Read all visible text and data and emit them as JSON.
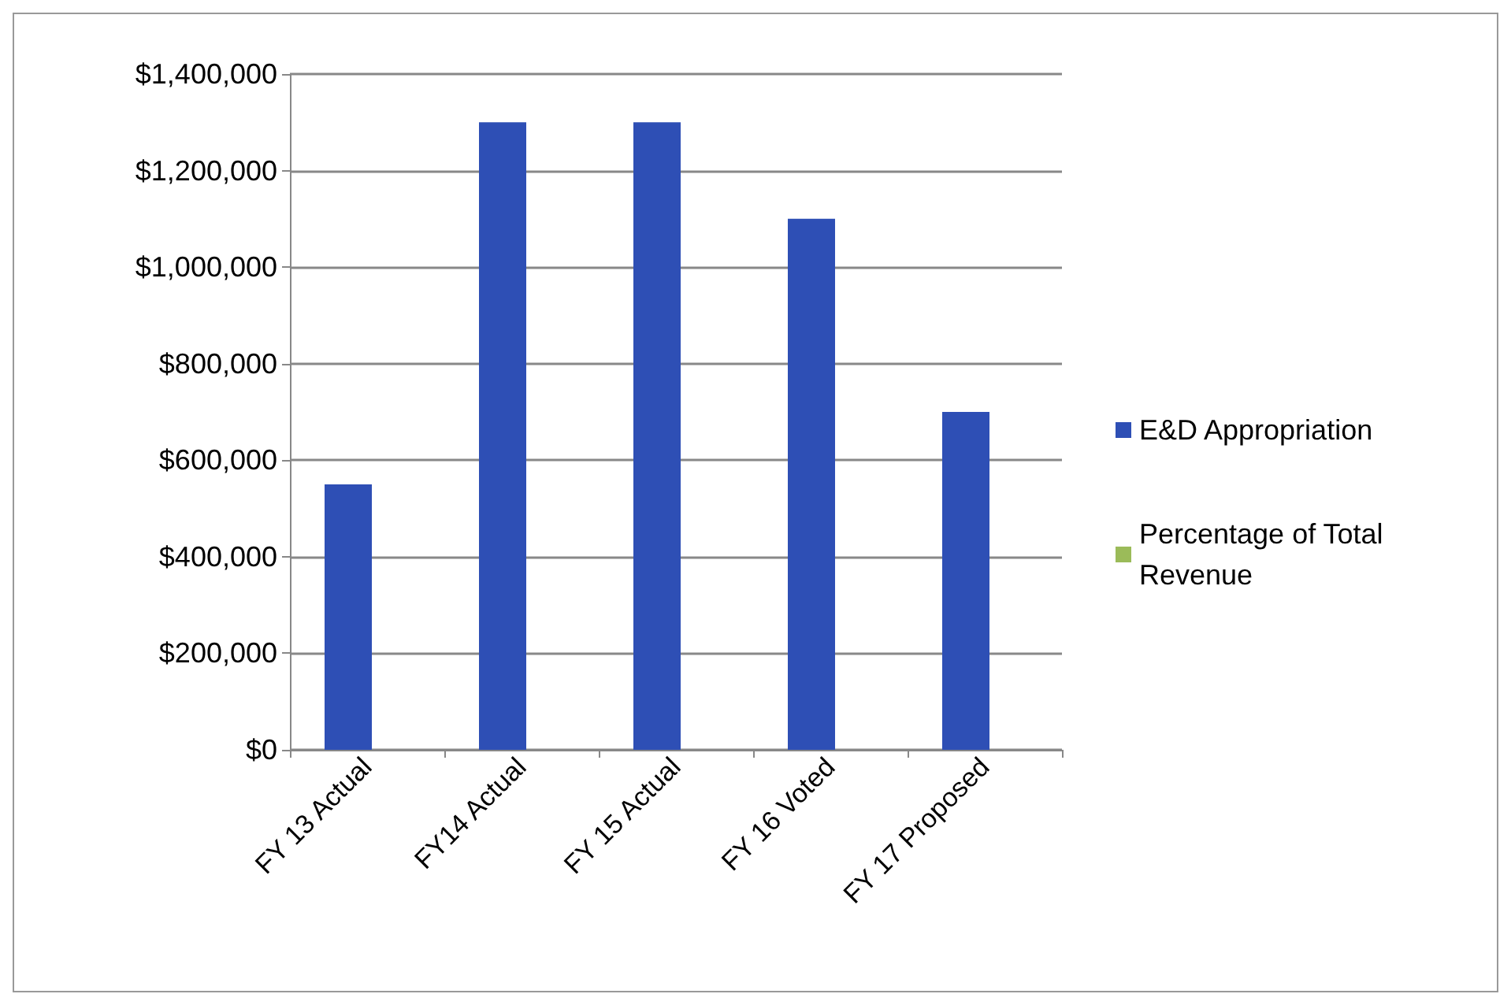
{
  "chart_data": {
    "type": "bar",
    "categories": [
      "FY 13 Actual",
      "FY14 Actual",
      "FY 15 Actual",
      "FY 16 Voted",
      "FY 17 Proposed"
    ],
    "series": [
      {
        "name": "E&D Appropriation",
        "color": "#2e4fb5",
        "values": [
          550000,
          1300000,
          1300000,
          1100000,
          700000
        ]
      },
      {
        "name": "Percentage of Total Revenue",
        "color": "#9bbb59",
        "values": [
          null,
          null,
          null,
          null,
          null
        ]
      }
    ],
    "ylim": [
      0,
      1400000
    ],
    "yticks": [
      {
        "value": 0,
        "label": "$0"
      },
      {
        "value": 200000,
        "label": "$200,000"
      },
      {
        "value": 400000,
        "label": "$400,000"
      },
      {
        "value": 600000,
        "label": "$600,000"
      },
      {
        "value": 800000,
        "label": "$800,000"
      },
      {
        "value": 1000000,
        "label": "$1,000,000"
      },
      {
        "value": 1200000,
        "label": "$1,200,000"
      },
      {
        "value": 1400000,
        "label": "$1,400,000"
      }
    ],
    "grid": "y",
    "legend": "right"
  }
}
